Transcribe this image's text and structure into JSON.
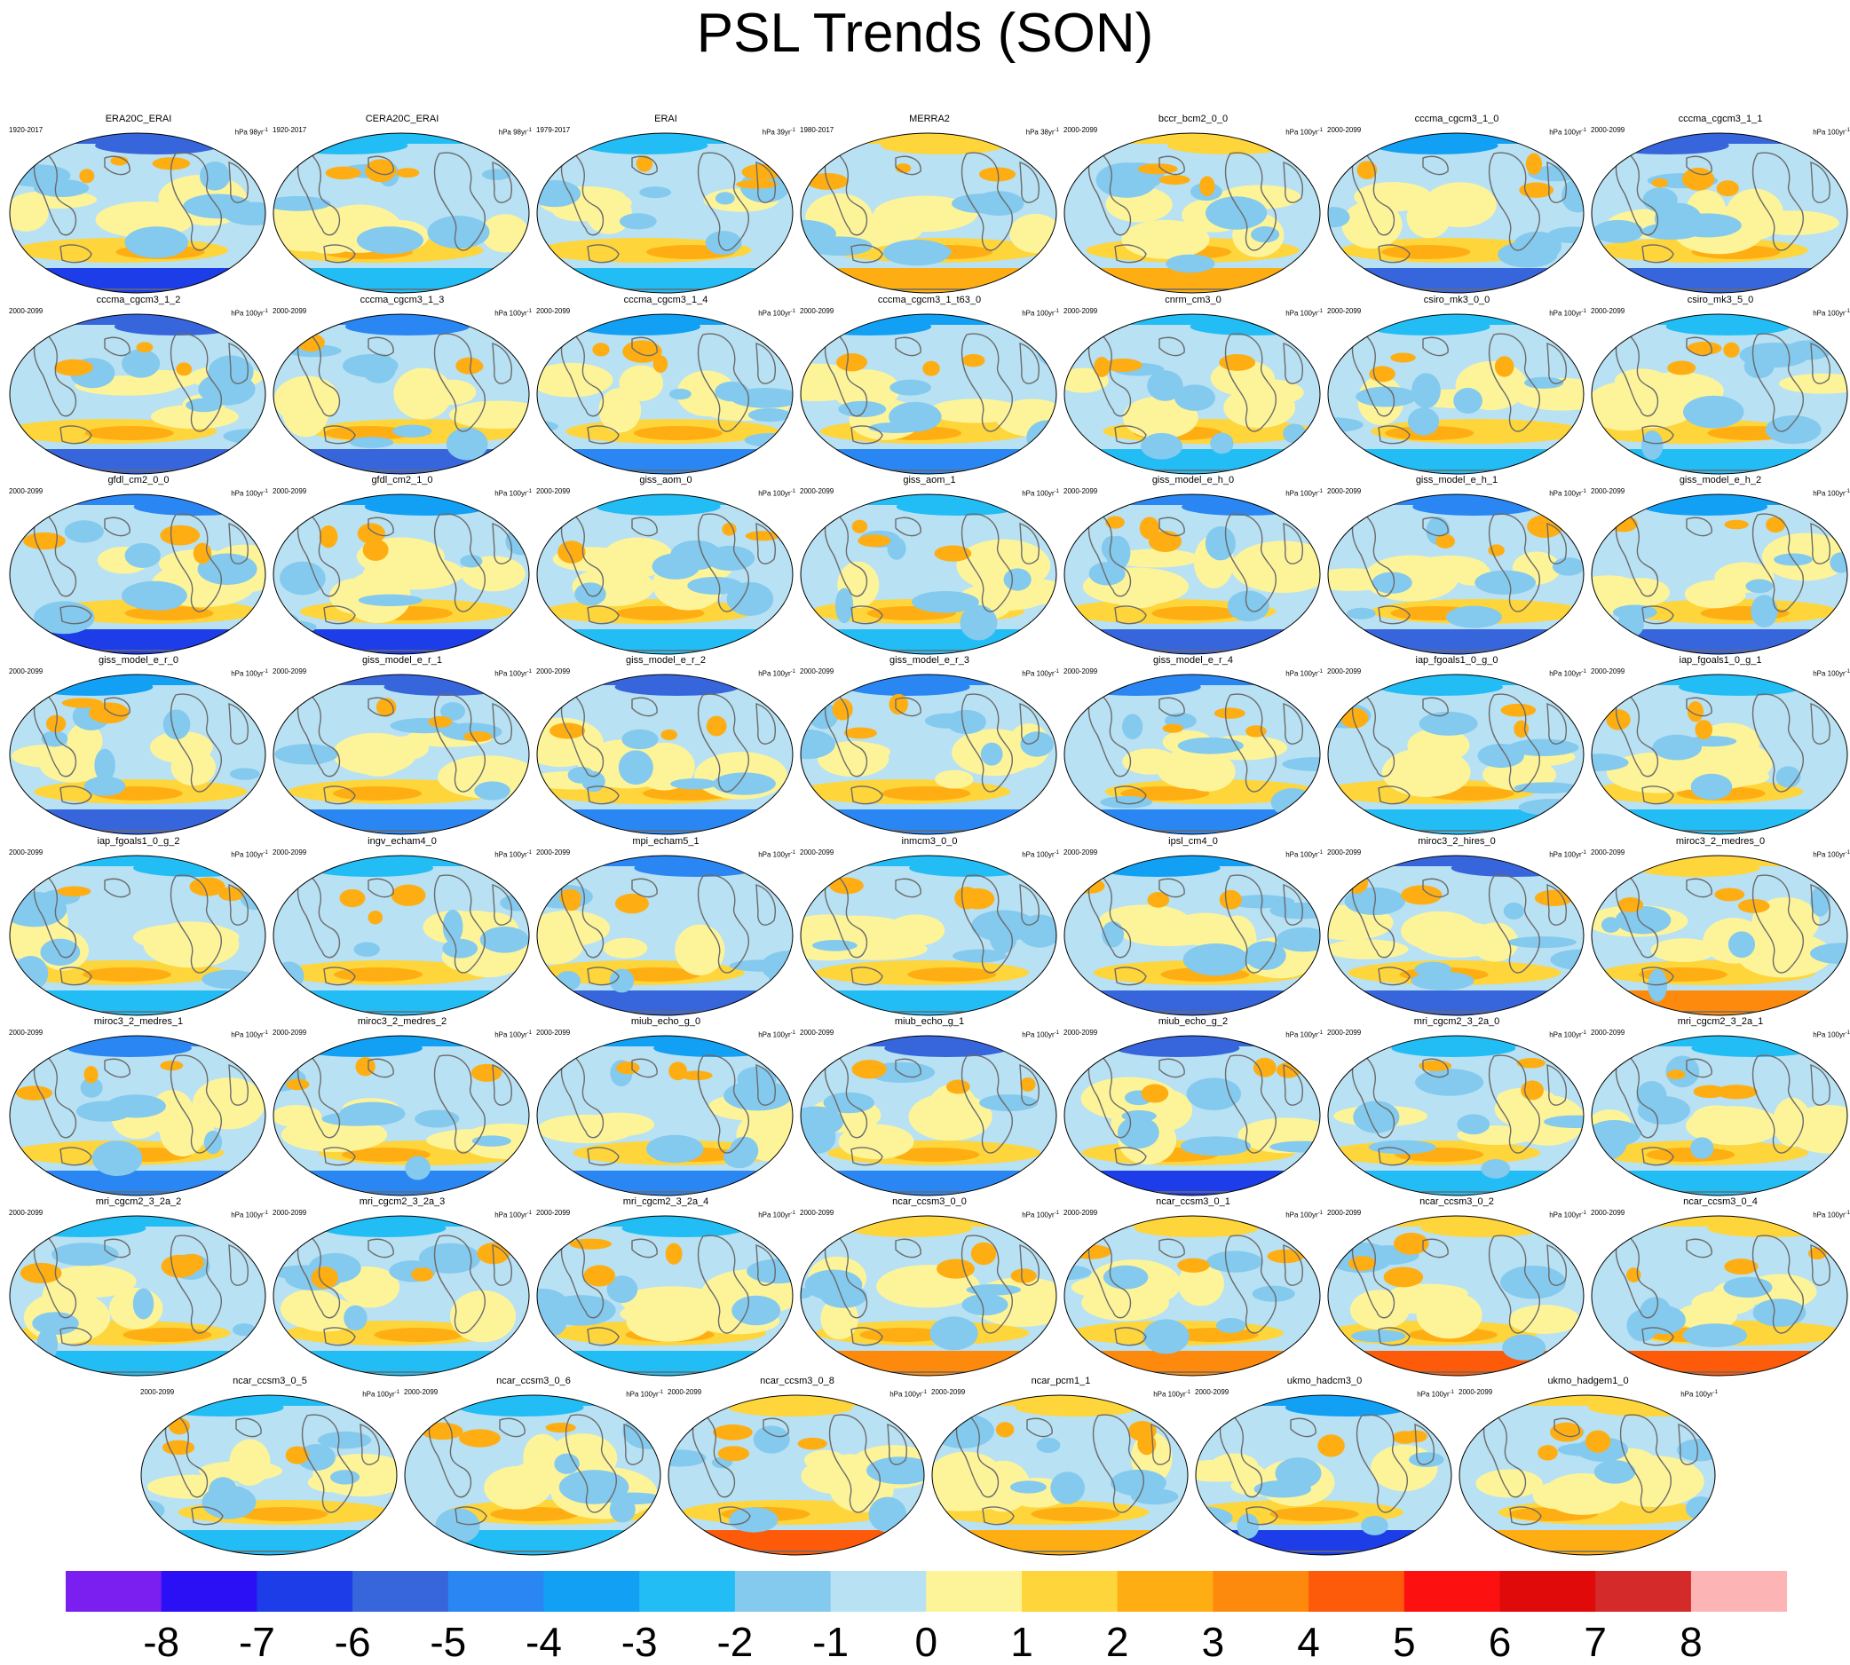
{
  "title": "PSL Trends (SON)",
  "chart_data": {
    "type": "heatmap",
    "projection": "global map panels",
    "panels": [
      {
        "name": "ERA20C_ERAI",
        "period": "1920-2017",
        "units": "hPa 98yr",
        "dom": "neg"
      },
      {
        "name": "CERA20C_ERAI",
        "period": "1920-2017",
        "units": "hPa 98yr",
        "dom": "mixed"
      },
      {
        "name": "ERAI",
        "period": "1979-2017",
        "units": "hPa 39yr",
        "dom": "mixed"
      },
      {
        "name": "MERRA2",
        "period": "1980-2017",
        "units": "hPa 38yr",
        "dom": "pos"
      },
      {
        "name": "bccr_bcm2_0_0",
        "period": "2000-2099",
        "units": "hPa 100yr",
        "dom": "pos"
      },
      {
        "name": "cccma_cgcm3_1_0",
        "period": "2000-2099",
        "units": "hPa 100yr",
        "dom": "neg"
      },
      {
        "name": "cccma_cgcm3_1_1",
        "period": "2000-2099",
        "units": "hPa 100yr",
        "dom": "neg"
      },
      {
        "name": "cccma_cgcm3_1_2",
        "period": "2000-2099",
        "units": "hPa 100yr",
        "dom": "neg"
      },
      {
        "name": "cccma_cgcm3_1_3",
        "period": "2000-2099",
        "units": "hPa 100yr",
        "dom": "neg"
      },
      {
        "name": "cccma_cgcm3_1_4",
        "period": "2000-2099",
        "units": "hPa 100yr",
        "dom": "neg"
      },
      {
        "name": "cccma_cgcm3_1_t63_0",
        "period": "2000-2099",
        "units": "hPa 100yr",
        "dom": "neg"
      },
      {
        "name": "cnrm_cm3_0",
        "period": "2000-2099",
        "units": "hPa 100yr",
        "dom": "mixed"
      },
      {
        "name": "csiro_mk3_0_0",
        "period": "2000-2099",
        "units": "hPa 100yr",
        "dom": "mixed"
      },
      {
        "name": "csiro_mk3_5_0",
        "period": "2000-2099",
        "units": "hPa 100yr",
        "dom": "mixed"
      },
      {
        "name": "gfdl_cm2_0_0",
        "period": "2000-2099",
        "units": "hPa 100yr",
        "dom": "neg"
      },
      {
        "name": "gfdl_cm2_1_0",
        "period": "2000-2099",
        "units": "hPa 100yr",
        "dom": "neg"
      },
      {
        "name": "giss_aom_0",
        "period": "2000-2099",
        "units": "hPa 100yr",
        "dom": "mixed"
      },
      {
        "name": "giss_aom_1",
        "period": "2000-2099",
        "units": "hPa 100yr",
        "dom": "mixed"
      },
      {
        "name": "giss_model_e_h_0",
        "period": "2000-2099",
        "units": "hPa 100yr",
        "dom": "neg"
      },
      {
        "name": "giss_model_e_h_1",
        "period": "2000-2099",
        "units": "hPa 100yr",
        "dom": "neg"
      },
      {
        "name": "giss_model_e_h_2",
        "period": "2000-2099",
        "units": "hPa 100yr",
        "dom": "neg"
      },
      {
        "name": "giss_model_e_r_0",
        "period": "2000-2099",
        "units": "hPa 100yr",
        "dom": "neg"
      },
      {
        "name": "giss_model_e_r_1",
        "period": "2000-2099",
        "units": "hPa 100yr",
        "dom": "neg"
      },
      {
        "name": "giss_model_e_r_2",
        "period": "2000-2099",
        "units": "hPa 100yr",
        "dom": "neg"
      },
      {
        "name": "giss_model_e_r_3",
        "period": "2000-2099",
        "units": "hPa 100yr",
        "dom": "neg"
      },
      {
        "name": "giss_model_e_r_4",
        "period": "2000-2099",
        "units": "hPa 100yr",
        "dom": "neg"
      },
      {
        "name": "iap_fgoals1_0_g_0",
        "period": "2000-2099",
        "units": "hPa 100yr",
        "dom": "mixed"
      },
      {
        "name": "iap_fgoals1_0_g_1",
        "period": "2000-2099",
        "units": "hPa 100yr",
        "dom": "mixed"
      },
      {
        "name": "iap_fgoals1_0_g_2",
        "period": "2000-2099",
        "units": "hPa 100yr",
        "dom": "mixed"
      },
      {
        "name": "ingv_echam4_0",
        "period": "2000-2099",
        "units": "hPa 100yr",
        "dom": "mixed"
      },
      {
        "name": "mpi_echam5_1",
        "period": "2000-2099",
        "units": "hPa 100yr",
        "dom": "neg"
      },
      {
        "name": "inmcm3_0_0",
        "period": "2000-2099",
        "units": "hPa 100yr",
        "dom": "mixed"
      },
      {
        "name": "ipsl_cm4_0",
        "period": "2000-2099",
        "units": "hPa 100yr",
        "dom": "neg"
      },
      {
        "name": "miroc3_2_hires_0",
        "period": "2000-2099",
        "units": "hPa 100yr",
        "dom": "neg"
      },
      {
        "name": "miroc3_2_medres_0",
        "period": "2000-2099",
        "units": "hPa 100yr",
        "dom": "pos"
      },
      {
        "name": "miroc3_2_medres_1",
        "period": "2000-2099",
        "units": "hPa 100yr",
        "dom": "neg"
      },
      {
        "name": "miroc3_2_medres_2",
        "period": "2000-2099",
        "units": "hPa 100yr",
        "dom": "neg"
      },
      {
        "name": "miub_echo_g_0",
        "period": "2000-2099",
        "units": "hPa 100yr",
        "dom": "neg"
      },
      {
        "name": "miub_echo_g_1",
        "period": "2000-2099",
        "units": "hPa 100yr",
        "dom": "neg"
      },
      {
        "name": "miub_echo_g_2",
        "period": "2000-2099",
        "units": "hPa 100yr",
        "dom": "neg"
      },
      {
        "name": "mri_cgcm2_3_2a_0",
        "period": "2000-2099",
        "units": "hPa 100yr",
        "dom": "mixed"
      },
      {
        "name": "mri_cgcm2_3_2a_1",
        "period": "2000-2099",
        "units": "hPa 100yr",
        "dom": "mixed"
      },
      {
        "name": "mri_cgcm2_3_2a_2",
        "period": "2000-2099",
        "units": "hPa 100yr",
        "dom": "mixed"
      },
      {
        "name": "mri_cgcm2_3_2a_3",
        "period": "2000-2099",
        "units": "hPa 100yr",
        "dom": "mixed"
      },
      {
        "name": "mri_cgcm2_3_2a_4",
        "period": "2000-2099",
        "units": "hPa 100yr",
        "dom": "mixed"
      },
      {
        "name": "ncar_ccsm3_0_0",
        "period": "2000-2099",
        "units": "hPa 100yr",
        "dom": "pos"
      },
      {
        "name": "ncar_ccsm3_0_1",
        "period": "2000-2099",
        "units": "hPa 100yr",
        "dom": "pos"
      },
      {
        "name": "ncar_ccsm3_0_2",
        "period": "2000-2099",
        "units": "hPa 100yr",
        "dom": "pos"
      },
      {
        "name": "ncar_ccsm3_0_4",
        "period": "2000-2099",
        "units": "hPa 100yr",
        "dom": "pos"
      },
      {
        "name": "ncar_ccsm3_0_5",
        "period": "2000-2099",
        "units": "hPa 100yr",
        "dom": "mixed"
      },
      {
        "name": "ncar_ccsm3_0_6",
        "period": "2000-2099",
        "units": "hPa 100yr",
        "dom": "mixed"
      },
      {
        "name": "ncar_ccsm3_0_8",
        "period": "2000-2099",
        "units": "hPa 100yr",
        "dom": "pos"
      },
      {
        "name": "ncar_pcm1_1",
        "period": "2000-2099",
        "units": "hPa 100yr",
        "dom": "pos"
      },
      {
        "name": "ukmo_hadcm3_0",
        "period": "2000-2099",
        "units": "hPa 100yr",
        "dom": "neg"
      },
      {
        "name": "ukmo_hadgem1_0",
        "period": "2000-2099",
        "units": "hPa 100yr",
        "dom": "pos"
      }
    ],
    "units_superscript": "-1",
    "colorbar": {
      "labels": [
        "-8",
        "-7",
        "-6",
        "-5",
        "-4",
        "-3",
        "-2",
        "-1",
        "0",
        "1",
        "2",
        "3",
        "4",
        "5",
        "6",
        "7",
        "8"
      ],
      "colors": [
        "#7a1ff0",
        "#2b10f5",
        "#1c3de8",
        "#3765dc",
        "#2a86f2",
        "#12a0f5",
        "#22bdf5",
        "#84c9ee",
        "#b8e1f3",
        "#fdf49a",
        "#fed53a",
        "#feae12",
        "#fd8a0c",
        "#fd5a0a",
        "#fd1010",
        "#e00a0a",
        "#d42a2a",
        "#fdb4b4"
      ]
    }
  }
}
